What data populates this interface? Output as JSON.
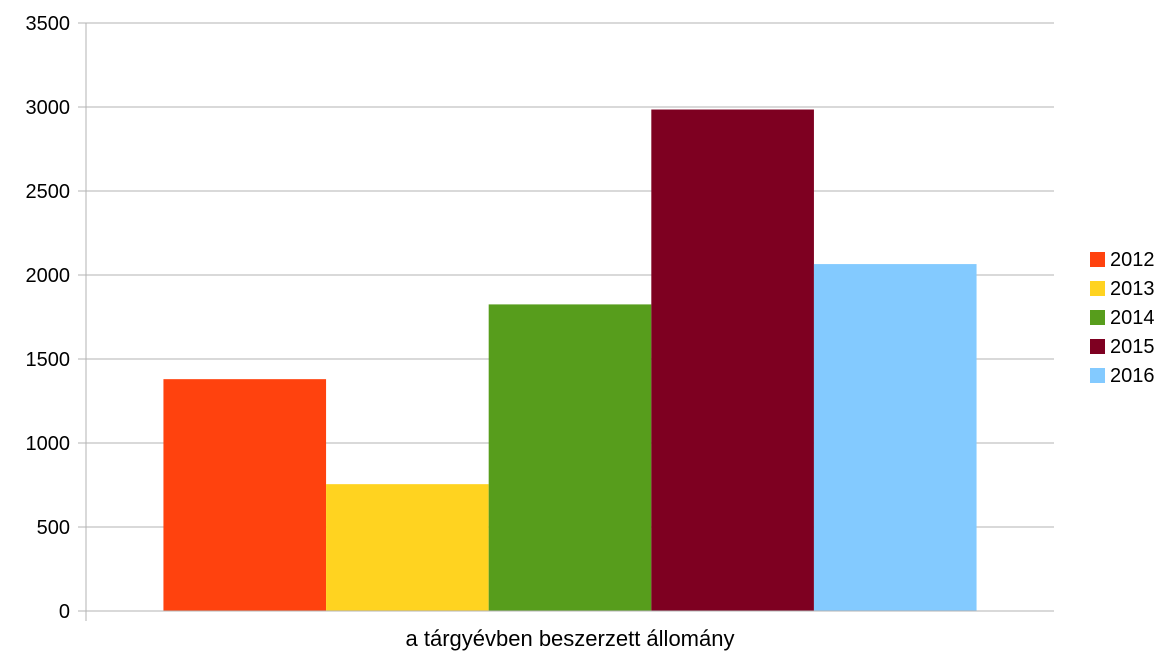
{
  "chart_data": {
    "type": "bar",
    "categories": [
      "a tárgyévben beszerzett állomány"
    ],
    "series": [
      {
        "name": "2012",
        "values": [
          1380
        ],
        "color": "#ff420e"
      },
      {
        "name": "2013",
        "values": [
          755
        ],
        "color": "#ffd320"
      },
      {
        "name": "2014",
        "values": [
          1825
        ],
        "color": "#579d1c"
      },
      {
        "name": "2015",
        "values": [
          2985
        ],
        "color": "#7e0021"
      },
      {
        "name": "2016",
        "values": [
          2065
        ],
        "color": "#83caff"
      }
    ],
    "ylim": [
      0,
      3500
    ],
    "yticks": [
      "0",
      "500",
      "1000",
      "1500",
      "2000",
      "2500",
      "3000",
      "3500"
    ],
    "grid": true,
    "legend": "right"
  }
}
